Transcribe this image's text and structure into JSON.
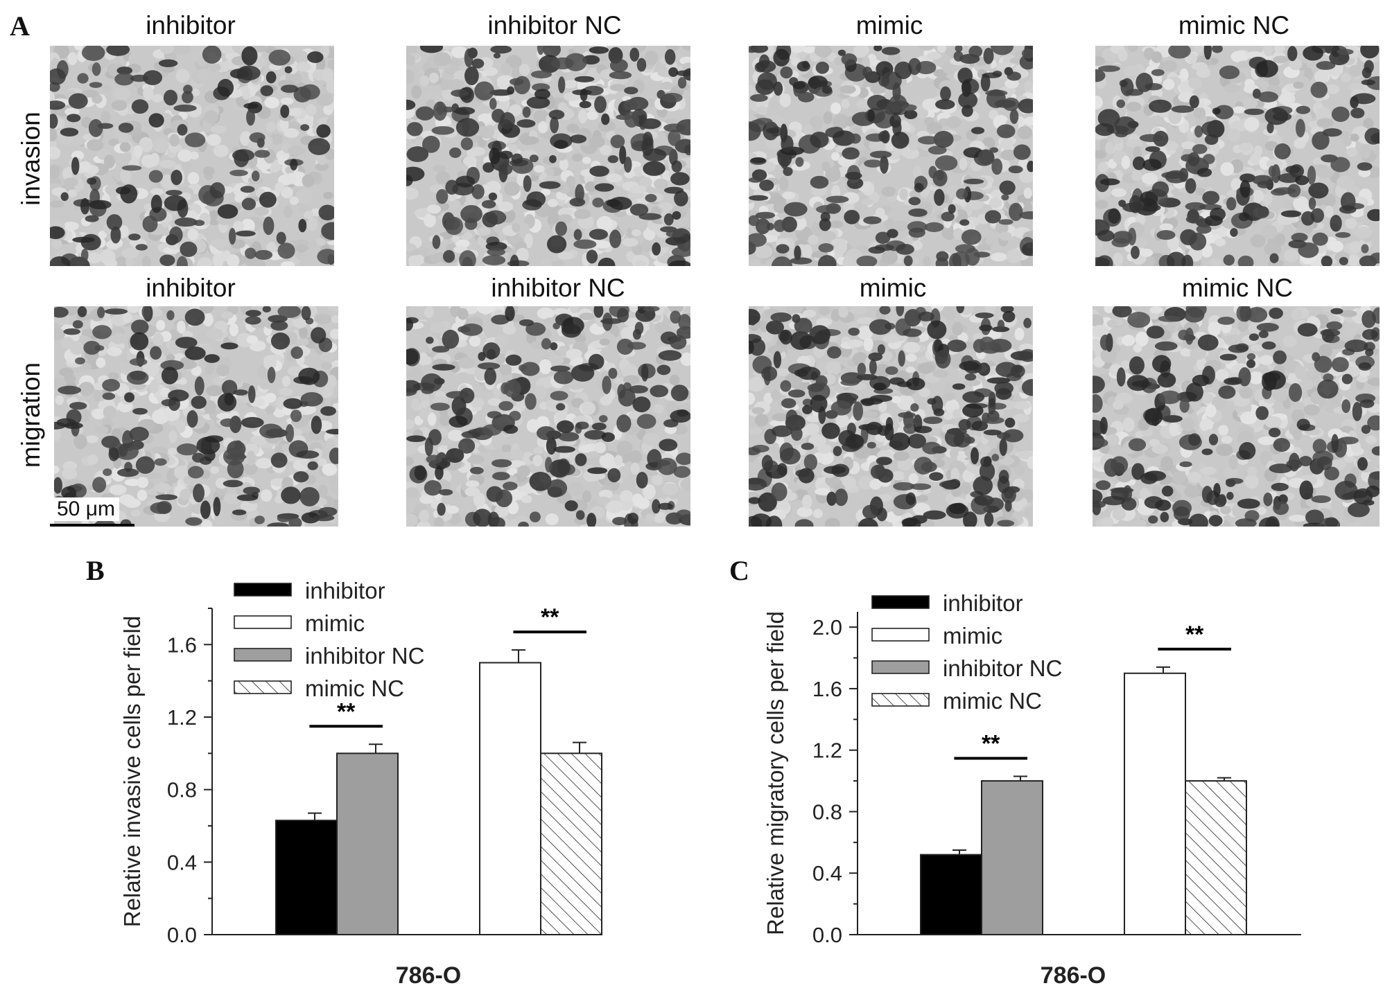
{
  "panels": {
    "a": {
      "letter": "A",
      "rows": [
        {
          "label": "invasion",
          "conditions": [
            "inhibitor",
            "inhibitor NC",
            "mimic",
            "mimic NC"
          ],
          "density": [
            0.3,
            0.55,
            0.62,
            0.5
          ]
        },
        {
          "label": "migration",
          "conditions": [
            "inhibitor",
            "inhibitor NC",
            "mimic",
            "mimic NC"
          ],
          "density": [
            0.4,
            0.5,
            0.75,
            0.55
          ]
        }
      ],
      "scalebar": "50 μm"
    },
    "b": {
      "letter": "B"
    },
    "c": {
      "letter": "C"
    }
  },
  "legend_series": [
    {
      "name": "inhibitor",
      "fill": "#000000",
      "pattern": "solid"
    },
    {
      "name": "mimic",
      "fill": "#ffffff",
      "pattern": "solid"
    },
    {
      "name": "inhibitor NC",
      "fill": "#9e9e9e",
      "pattern": "solid"
    },
    {
      "name": "mimic  NC",
      "fill": "#ffffff",
      "pattern": "hatch"
    }
  ],
  "chart_data": [
    {
      "type": "bar",
      "title": "",
      "xlabel": "786-O",
      "ylabel": "Relative invasive cells per field",
      "ylim": [
        0,
        1.8
      ],
      "yticks": [
        "0.0",
        "0.4",
        "0.8",
        "1.2",
        "1.6"
      ],
      "legend": [
        "inhibitor",
        "mimic",
        "inhibitor NC",
        "mimic  NC"
      ],
      "bars": [
        {
          "name": "inhibitor",
          "value": 0.63,
          "err": 0.04,
          "fill": "#000000",
          "pattern": "solid"
        },
        {
          "name": "inhibitor NC",
          "value": 1.0,
          "err": 0.05,
          "fill": "#9e9e9e",
          "pattern": "solid"
        },
        {
          "name": "mimic",
          "value": 1.5,
          "err": 0.07,
          "fill": "#ffffff",
          "pattern": "solid"
        },
        {
          "name": "mimic  NC",
          "value": 1.0,
          "err": 0.06,
          "fill": "#ffffff",
          "pattern": "hatch"
        }
      ],
      "significance": [
        {
          "pair": [
            0,
            1
          ],
          "label": "**"
        },
        {
          "pair": [
            2,
            3
          ],
          "label": "**"
        }
      ]
    },
    {
      "type": "bar",
      "title": "",
      "xlabel": "786-O",
      "ylabel": "Relative migratory cells per field",
      "ylim": [
        0,
        2.1
      ],
      "yticks": [
        "0.0",
        "0.4",
        "0.8",
        "1.2",
        "1.6",
        "2.0"
      ],
      "legend": [
        "inhibitor",
        "mimic",
        "inhibitor NC",
        "mimic NC"
      ],
      "bars": [
        {
          "name": "inhibitor",
          "value": 0.52,
          "err": 0.03,
          "fill": "#000000",
          "pattern": "solid"
        },
        {
          "name": "inhibitor NC",
          "value": 1.0,
          "err": 0.03,
          "fill": "#9e9e9e",
          "pattern": "solid"
        },
        {
          "name": "mimic",
          "value": 1.7,
          "err": 0.04,
          "fill": "#ffffff",
          "pattern": "solid"
        },
        {
          "name": "mimic NC",
          "value": 1.0,
          "err": 0.02,
          "fill": "#ffffff",
          "pattern": "hatch"
        }
      ],
      "significance": [
        {
          "pair": [
            0,
            1
          ],
          "label": "**"
        },
        {
          "pair": [
            2,
            3
          ],
          "label": "**"
        }
      ]
    }
  ]
}
